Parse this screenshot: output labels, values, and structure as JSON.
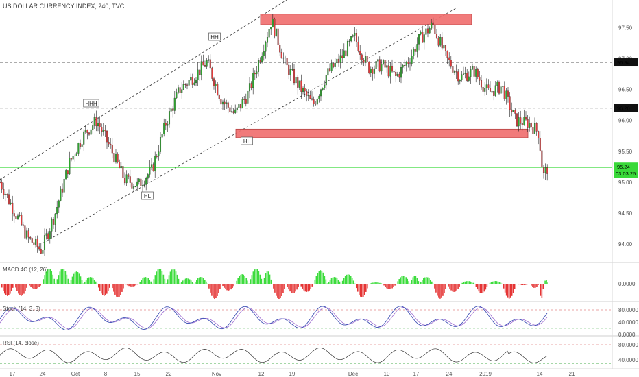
{
  "title": "US DOLLAR CURRENCY INDEX, 240, TVC",
  "colors": {
    "up": "#2fa52f",
    "down": "#e23b3b",
    "zone": "#f07070",
    "level": "#222222",
    "price_line": "#39d939",
    "macd_up": "#3ddc3d",
    "macd_down": "#e53535",
    "stoch_k": "#3f51b5",
    "stoch_d": "#9c6bd0",
    "band_hi": "#d64b4b",
    "band_lo": "#4caf50"
  },
  "price_axis": {
    "ticks": [
      "94.00",
      "94.50",
      "95.00",
      "95.50",
      "96.00",
      "96.50",
      "97.00",
      "97.50"
    ],
    "levels": [
      {
        "value": 96.94,
        "label": "96.94"
      },
      {
        "value": 96.2,
        "label": "96.20"
      }
    ],
    "last": {
      "value": 95.24,
      "label": "95.24",
      "countdown": "03:03:25"
    }
  },
  "time_axis": [
    "17",
    "24",
    "Oct",
    "8",
    "15",
    "22",
    "Nov",
    "12",
    "19",
    "Dec",
    "10",
    "17",
    "24",
    "2019",
    "14",
    "21"
  ],
  "zones": [
    {
      "name": "resistance",
      "from": 97.55,
      "to": 97.72
    },
    {
      "name": "support",
      "from": 95.72,
      "to": 95.86
    }
  ],
  "annotations": [
    {
      "text": "HH",
      "date": "2018-10-29"
    },
    {
      "text": "HHH",
      "date": "2018-10-03"
    },
    {
      "text": "HL",
      "date": "2018-11-07"
    },
    {
      "text": "HL",
      "date": "2018-10-17"
    }
  ],
  "macd": {
    "label": "MACD 4C (12, 26)",
    "axis": [
      "0.0000"
    ]
  },
  "stoch": {
    "label": "Stoch (14, 3, 3)",
    "axis": [
      "80.0000",
      "40.0000",
      "0.0000"
    ]
  },
  "rsi": {
    "label": "RSI (14, close)",
    "axis": [
      "80.0000",
      "40.0000"
    ]
  },
  "chart_data": {
    "type": "candlestick",
    "x_type": "date",
    "title": "US DOLLAR CURRENCY INDEX, 240, TVC",
    "xlim": [
      "2018-09-14",
      "2019-01-25"
    ],
    "ylim": [
      93.7,
      97.95
    ],
    "series": [
      {
        "type": "line",
        "x": [
          "2018-09-14",
          "2018-09-17",
          "2018-09-20",
          "2018-09-23",
          "2018-09-26",
          "2018-09-29",
          "2018-10-02",
          "2018-10-05",
          "2018-10-08",
          "2018-10-11",
          "2018-10-14",
          "2018-10-17",
          "2018-10-20",
          "2018-10-23",
          "2018-10-26",
          "2018-10-29",
          "2018-11-01",
          "2018-11-04",
          "2018-11-07",
          "2018-11-10",
          "2018-11-12",
          "2018-11-15",
          "2018-11-18",
          "2018-11-21",
          "2018-11-24",
          "2018-11-27",
          "2018-11-30",
          "2018-12-03",
          "2018-12-06",
          "2018-12-09",
          "2018-12-12",
          "2018-12-14",
          "2018-12-17",
          "2018-12-20",
          "2018-12-23",
          "2018-12-26",
          "2018-12-29",
          "2019-01-01",
          "2019-01-04",
          "2019-01-07",
          "2019-01-09",
          "2019-01-10",
          "2019-01-11"
        ],
        "y": [
          95.0,
          94.55,
          94.1,
          93.9,
          94.5,
          95.3,
          95.75,
          96.0,
          95.55,
          95.05,
          94.95,
          95.2,
          95.95,
          96.5,
          96.7,
          96.95,
          96.35,
          96.1,
          96.45,
          97.15,
          97.62,
          96.9,
          96.55,
          96.25,
          96.75,
          97.0,
          97.35,
          96.85,
          96.9,
          96.7,
          97.0,
          97.3,
          97.55,
          97.0,
          96.7,
          96.8,
          96.45,
          96.55,
          96.0,
          95.95,
          95.8,
          95.1,
          95.24
        ]
      }
    ]
  }
}
